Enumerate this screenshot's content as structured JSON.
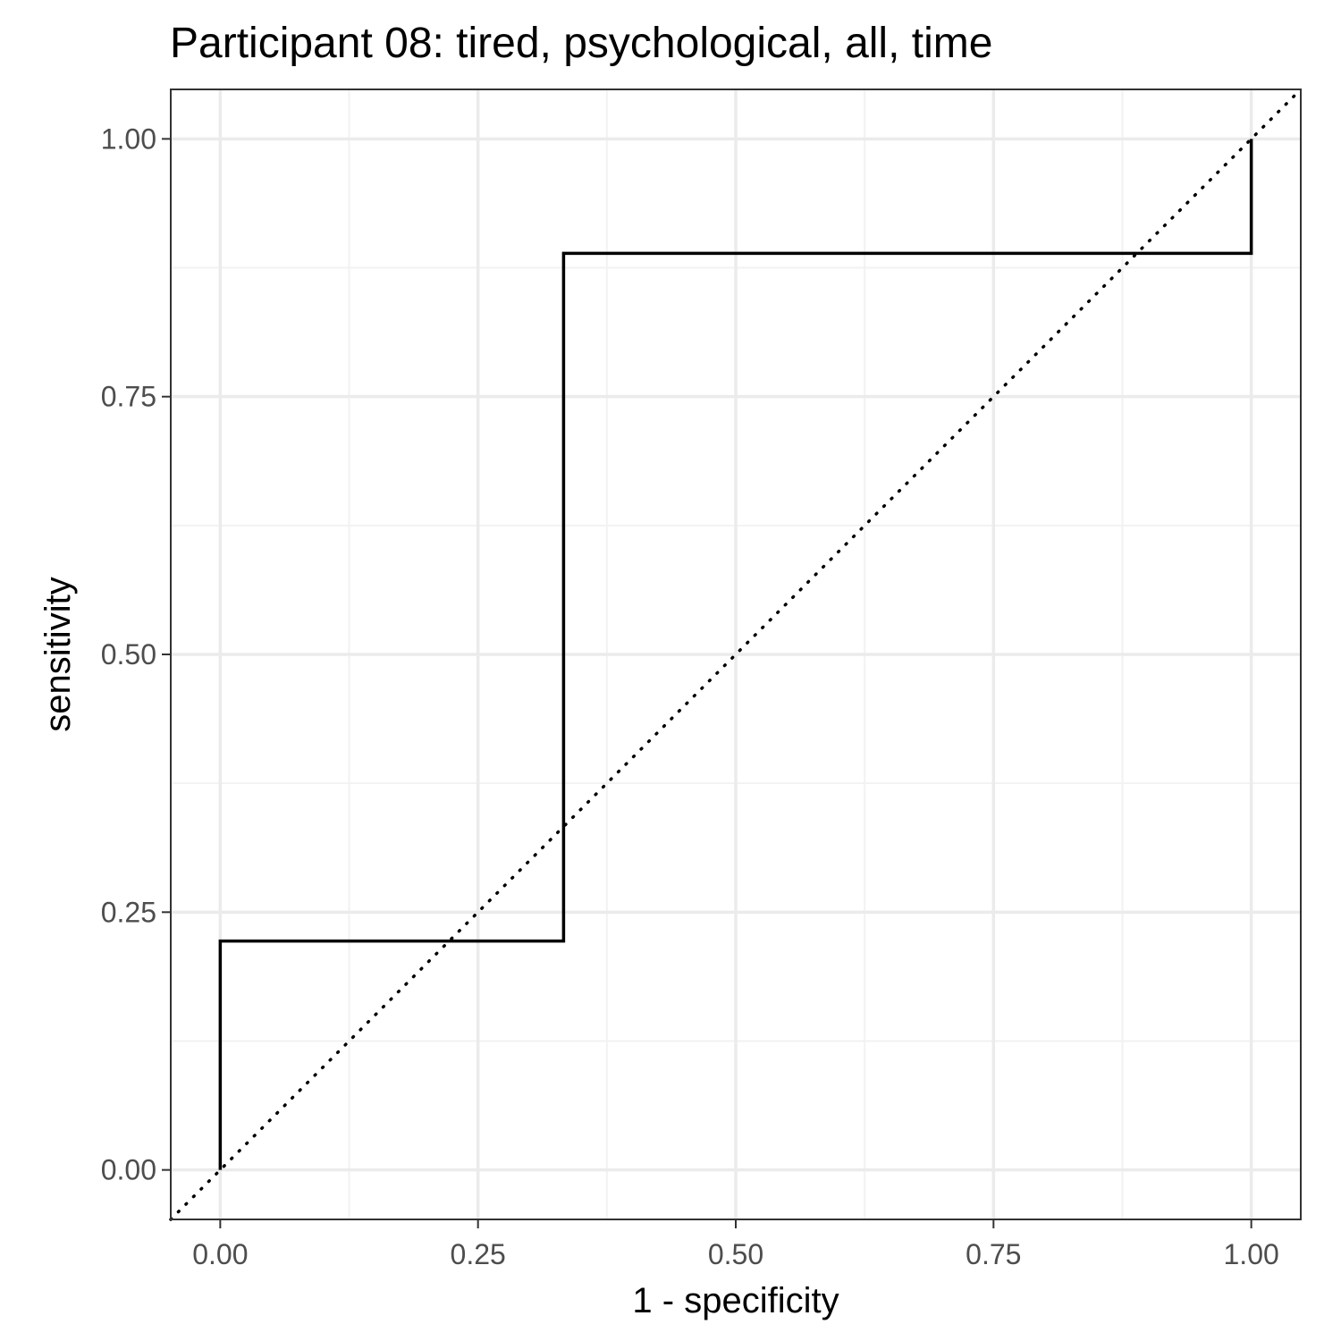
{
  "chart_data": {
    "type": "line",
    "title": "Participant 08: tired, psychological, all, time",
    "xlabel": "1 - specificity",
    "ylabel": "sensitivity",
    "xlim": [
      -0.048,
      1.048
    ],
    "ylim": [
      -0.048,
      1.048
    ],
    "x_ticks": [
      0,
      0.25,
      0.5,
      0.75,
      1
    ],
    "y_ticks": [
      0,
      0.25,
      0.5,
      0.75,
      1
    ],
    "x_tick_labels": [
      "0.00",
      "0.25",
      "0.50",
      "0.75",
      "1.00"
    ],
    "y_tick_labels": [
      "0.00",
      "0.25",
      "0.50",
      "0.75",
      "1.00"
    ],
    "grid": true,
    "series": [
      {
        "style": "step",
        "color": "#000000",
        "x": [
          0,
          0,
          0.333,
          0.333,
          1,
          1
        ],
        "y": [
          0,
          0.222,
          0.222,
          0.889,
          0.889,
          1
        ]
      }
    ],
    "reference_line": {
      "style": "dotted",
      "color": "#000000",
      "x": [
        -0.048,
        1.048
      ],
      "y": [
        -0.048,
        1.048
      ]
    }
  },
  "colors": {
    "panel_border": "#333333",
    "grid_major": "#ebebeb",
    "grid_minor": "#f2f2f2",
    "tick_label": "#4d4d4d",
    "tick_mark": "#333333"
  }
}
